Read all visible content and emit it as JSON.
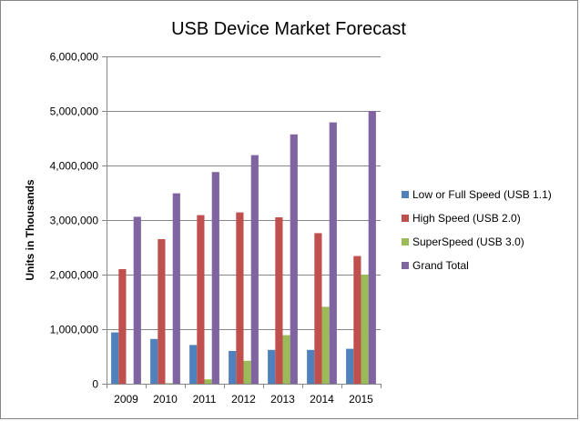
{
  "chart_data": {
    "type": "bar",
    "title": "USB Device Market Forecast",
    "xlabel": "",
    "ylabel": "Units in Thousands",
    "categories": [
      "2009",
      "2010",
      "2011",
      "2012",
      "2013",
      "2014",
      "2015"
    ],
    "ylim": [
      0,
      6000000
    ],
    "yticks": [
      0,
      1000000,
      2000000,
      3000000,
      4000000,
      5000000,
      6000000
    ],
    "ytick_labels": [
      "0",
      "1,000,000",
      "2,000,000",
      "3,000,000",
      "4,000,000",
      "5,000,000",
      "6,000,000"
    ],
    "grid": true,
    "legend_position": "right",
    "series": [
      {
        "name": "Low or Full Speed (USB 1.1)",
        "color": "#4F81BD",
        "values": [
          940000,
          820000,
          710000,
          600000,
          620000,
          620000,
          640000
        ]
      },
      {
        "name": "High Speed (USB 2.0)",
        "color": "#C0504D",
        "values": [
          2100000,
          2650000,
          3090000,
          3140000,
          3050000,
          2760000,
          2340000
        ]
      },
      {
        "name": "SuperSpeed (USB 3.0)",
        "color": "#9BBB59",
        "values": [
          0,
          10000,
          80000,
          420000,
          890000,
          1410000,
          2000000
        ]
      },
      {
        "name": "Grand Total",
        "color": "#8064A2",
        "values": [
          3060000,
          3490000,
          3880000,
          4190000,
          4570000,
          4790000,
          5000000
        ]
      }
    ]
  }
}
